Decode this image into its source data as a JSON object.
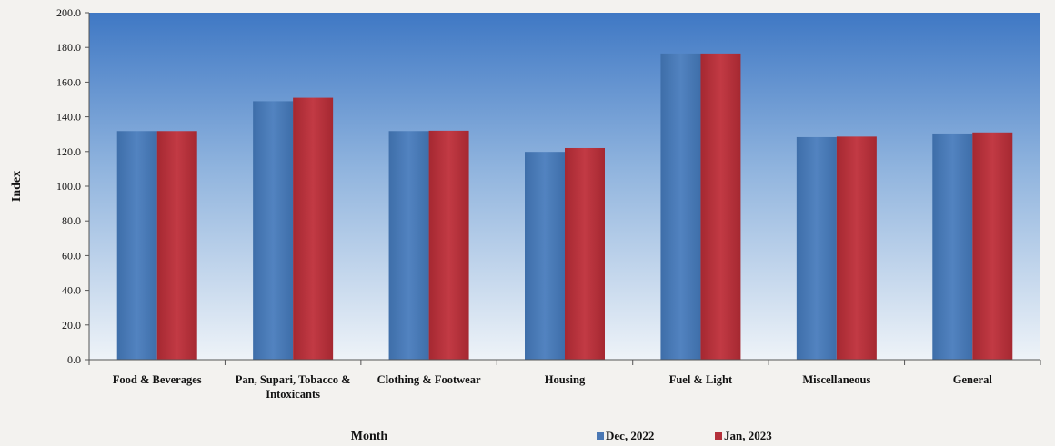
{
  "chart_data": {
    "type": "bar",
    "title": "",
    "xlabel": "Month",
    "ylabel": "Index",
    "ylim": [
      0,
      200
    ],
    "yticks": [
      "0.0",
      "20.0",
      "40.0",
      "60.0",
      "80.0",
      "100.0",
      "120.0",
      "140.0",
      "160.0",
      "180.0",
      "200.0"
    ],
    "categories": [
      "Food & Beverages",
      "Pan, Supari, Tobacco & Intoxicants",
      "Clothing & Footwear",
      "Housing",
      "Fuel & Light",
      "Miscellaneous",
      "General"
    ],
    "category_lines": [
      [
        "Food & Beverages"
      ],
      [
        "Pan, Supari, Tobacco &",
        "Intoxicants"
      ],
      [
        "Clothing & Footwear"
      ],
      [
        "Housing"
      ],
      [
        "Fuel & Light"
      ],
      [
        "Miscellaneous"
      ],
      [
        "General"
      ]
    ],
    "series": [
      {
        "name": "Dec, 2022",
        "color": "#4a78b4",
        "values": [
          131.8,
          149.0,
          131.8,
          119.8,
          176.5,
          128.3,
          130.4
        ]
      },
      {
        "name": "Jan, 2023",
        "color": "#b3303a",
        "values": [
          131.8,
          151.0,
          132.0,
          122.0,
          176.5,
          128.6,
          131.0
        ]
      }
    ],
    "grid": false,
    "legend_position": "bottom"
  }
}
